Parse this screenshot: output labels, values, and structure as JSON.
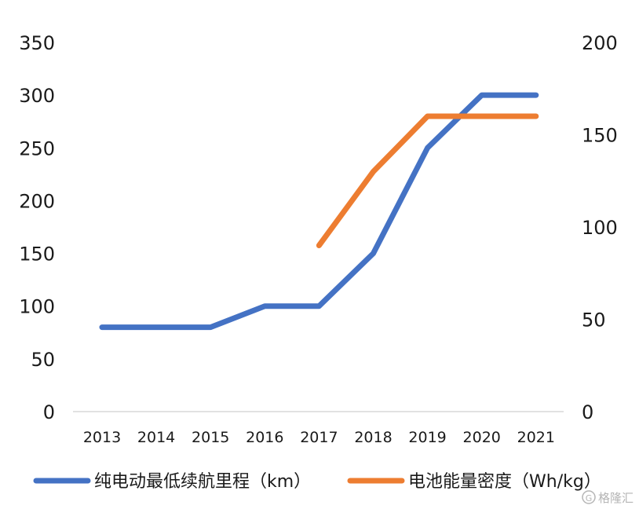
{
  "chart_data": {
    "type": "line",
    "categories": [
      "2013",
      "2014",
      "2015",
      "2016",
      "2017",
      "2018",
      "2019",
      "2020",
      "2021"
    ],
    "y_left": {
      "ylim": [
        0,
        350
      ],
      "ticks": [
        0,
        50,
        100,
        150,
        200,
        250,
        300,
        350
      ]
    },
    "y_right": {
      "ylim": [
        0,
        200
      ],
      "ticks": [
        0,
        50,
        100,
        150,
        200
      ]
    },
    "grid": false,
    "legend_position": "bottom",
    "series": [
      {
        "name": "纯电动最低续航里程（km）",
        "axis": "left",
        "color": "#4472C4",
        "values": [
          80,
          80,
          80,
          100,
          100,
          150,
          250,
          300,
          300
        ]
      },
      {
        "name": "电池能量密度（Wh/kg）",
        "axis": "right",
        "color": "#ED7D31",
        "values": [
          null,
          null,
          null,
          null,
          90,
          130,
          160,
          160,
          160
        ]
      }
    ]
  },
  "watermark": "格隆汇",
  "watermark_icon": "g-logo-icon"
}
